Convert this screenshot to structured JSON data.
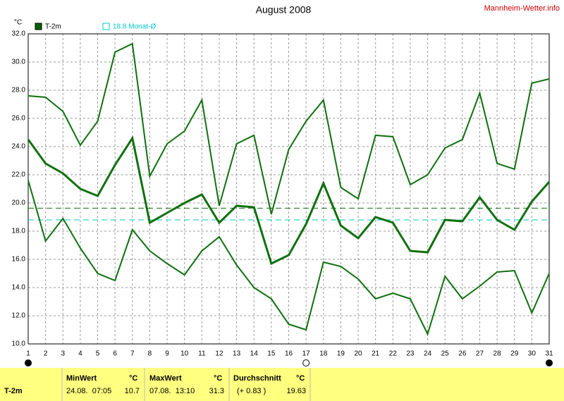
{
  "chart_data": {
    "type": "line",
    "title": "August 2008",
    "site": "Mannheim-Wetter.info",
    "y_unit": "°C",
    "legend": [
      {
        "label": "T-2m",
        "color": "#006400"
      },
      {
        "label": "18.8 Monat-Ø",
        "color": "#00c8c8"
      }
    ],
    "x": [
      1,
      2,
      3,
      4,
      5,
      6,
      7,
      8,
      9,
      10,
      11,
      12,
      13,
      14,
      15,
      16,
      17,
      18,
      19,
      20,
      21,
      22,
      23,
      24,
      25,
      26,
      27,
      28,
      29,
      30,
      31
    ],
    "xlim": [
      1,
      31
    ],
    "xticks": [
      1,
      2,
      3,
      4,
      5,
      6,
      7,
      8,
      9,
      10,
      11,
      12,
      13,
      14,
      15,
      16,
      17,
      18,
      19,
      20,
      21,
      22,
      23,
      24,
      25,
      26,
      27,
      28,
      29,
      30,
      31
    ],
    "ylim": [
      10,
      32
    ],
    "yticks": [
      {
        "value": 10,
        "label": "10.0"
      },
      {
        "value": 12,
        "label": "12.0"
      },
      {
        "value": 14,
        "label": "14.0"
      },
      {
        "value": 16,
        "label": "16.0"
      },
      {
        "value": 18,
        "label": "18.0"
      },
      {
        "value": 20,
        "label": "20.0"
      },
      {
        "value": 22,
        "label": "22.0"
      },
      {
        "value": 24,
        "label": "24.0"
      },
      {
        "value": 26,
        "label": "26.0"
      },
      {
        "value": 28,
        "label": "28.0"
      },
      {
        "value": 30,
        "label": "30.0"
      },
      {
        "value": 32,
        "label": "32.0"
      }
    ],
    "grid": true,
    "series": [
      {
        "color": "#107010",
        "width": 2,
        "values": [
          27.6,
          27.5,
          26.5,
          24.1,
          25.8,
          30.7,
          31.3,
          21.9,
          24.2,
          25.1,
          27.3,
          19.8,
          24.2,
          24.8,
          19.2,
          23.8,
          25.8,
          27.3,
          21.1,
          20.3,
          24.8,
          24.7,
          21.3,
          22.0,
          23.9,
          24.5,
          27.8,
          22.8,
          22.4,
          28.5,
          28.8
        ]
      },
      {
        "color": "#107010",
        "width": 3,
        "values": [
          24.5,
          22.8,
          22.1,
          21.0,
          20.5,
          22.7,
          24.6,
          18.6,
          19.3,
          20.0,
          20.6,
          18.6,
          19.8,
          19.7,
          15.7,
          16.3,
          18.5,
          21.4,
          18.4,
          17.5,
          19.0,
          18.6,
          16.6,
          16.5,
          18.8,
          18.7,
          20.4,
          18.8,
          18.1,
          20.1,
          21.5
        ]
      },
      {
        "color": "#107010",
        "width": 2,
        "values": [
          21.6,
          17.3,
          18.9,
          16.8,
          15.0,
          14.5,
          18.1,
          16.6,
          15.7,
          14.9,
          16.6,
          17.6,
          15.6,
          14.0,
          13.2,
          11.4,
          11.0,
          15.8,
          15.5,
          14.6,
          13.2,
          13.6,
          13.2,
          10.7,
          14.8,
          13.2,
          14.1,
          15.1,
          15.2,
          12.2,
          15.0
        ]
      }
    ],
    "ref_lines": [
      {
        "value": 19.63,
        "color": "#107010"
      },
      {
        "value": 18.8,
        "color": "#00c8c8"
      }
    ],
    "markers": [
      {
        "x": 1,
        "filled": true
      },
      {
        "x": 17,
        "filled": false
      },
      {
        "x": 31,
        "filled": true
      }
    ]
  },
  "table": {
    "header": [
      "MinWert",
      "°C",
      "MaxWert",
      "°C",
      "Durchschnitt",
      "°C"
    ],
    "row": [
      "T-2m",
      "24.08.  07:05",
      "10.7",
      "07.08.  13:10",
      "31.3",
      "(+ 0.83 )",
      "19.63"
    ]
  }
}
